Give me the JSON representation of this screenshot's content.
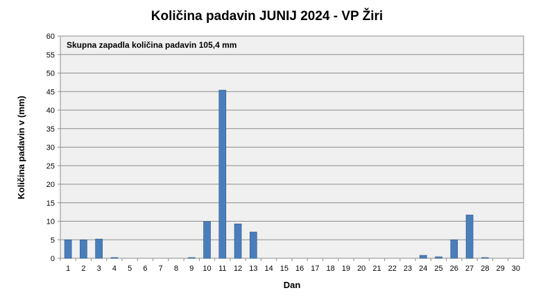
{
  "chart_data": {
    "type": "bar",
    "title": "Količina padavin JUNIJ 2024 - VP Žiri",
    "xlabel": "Dan",
    "ylabel": "Količina padavin v  (mm)",
    "annotation": "Skupna zapadla količina padavin 105,4 mm",
    "categories": [
      "1",
      "2",
      "3",
      "4",
      "5",
      "6",
      "7",
      "8",
      "9",
      "10",
      "11",
      "12",
      "13",
      "14",
      "15",
      "16",
      "17",
      "18",
      "19",
      "20",
      "21",
      "22",
      "23",
      "24",
      "25",
      "26",
      "27",
      "28",
      "29",
      "30"
    ],
    "series": [
      {
        "values": [
          5.0,
          5.0,
          5.2,
          0.2,
          0,
          0,
          0,
          0,
          0.2,
          9.9,
          45.4,
          9.3,
          7.1,
          0,
          0,
          0,
          0,
          0,
          0,
          0,
          0,
          0,
          0,
          0.8,
          0.4,
          5.0,
          11.7,
          0.2,
          0,
          0
        ],
        "color": "#4a7ebb"
      }
    ],
    "yticks": [
      0,
      5,
      10,
      15,
      20,
      25,
      30,
      35,
      40,
      45,
      50,
      55,
      60
    ],
    "ylim": [
      0,
      60
    ],
    "grid": true,
    "plot_background": "#f0f0f0",
    "gridline_color": "#8c8c8c"
  }
}
